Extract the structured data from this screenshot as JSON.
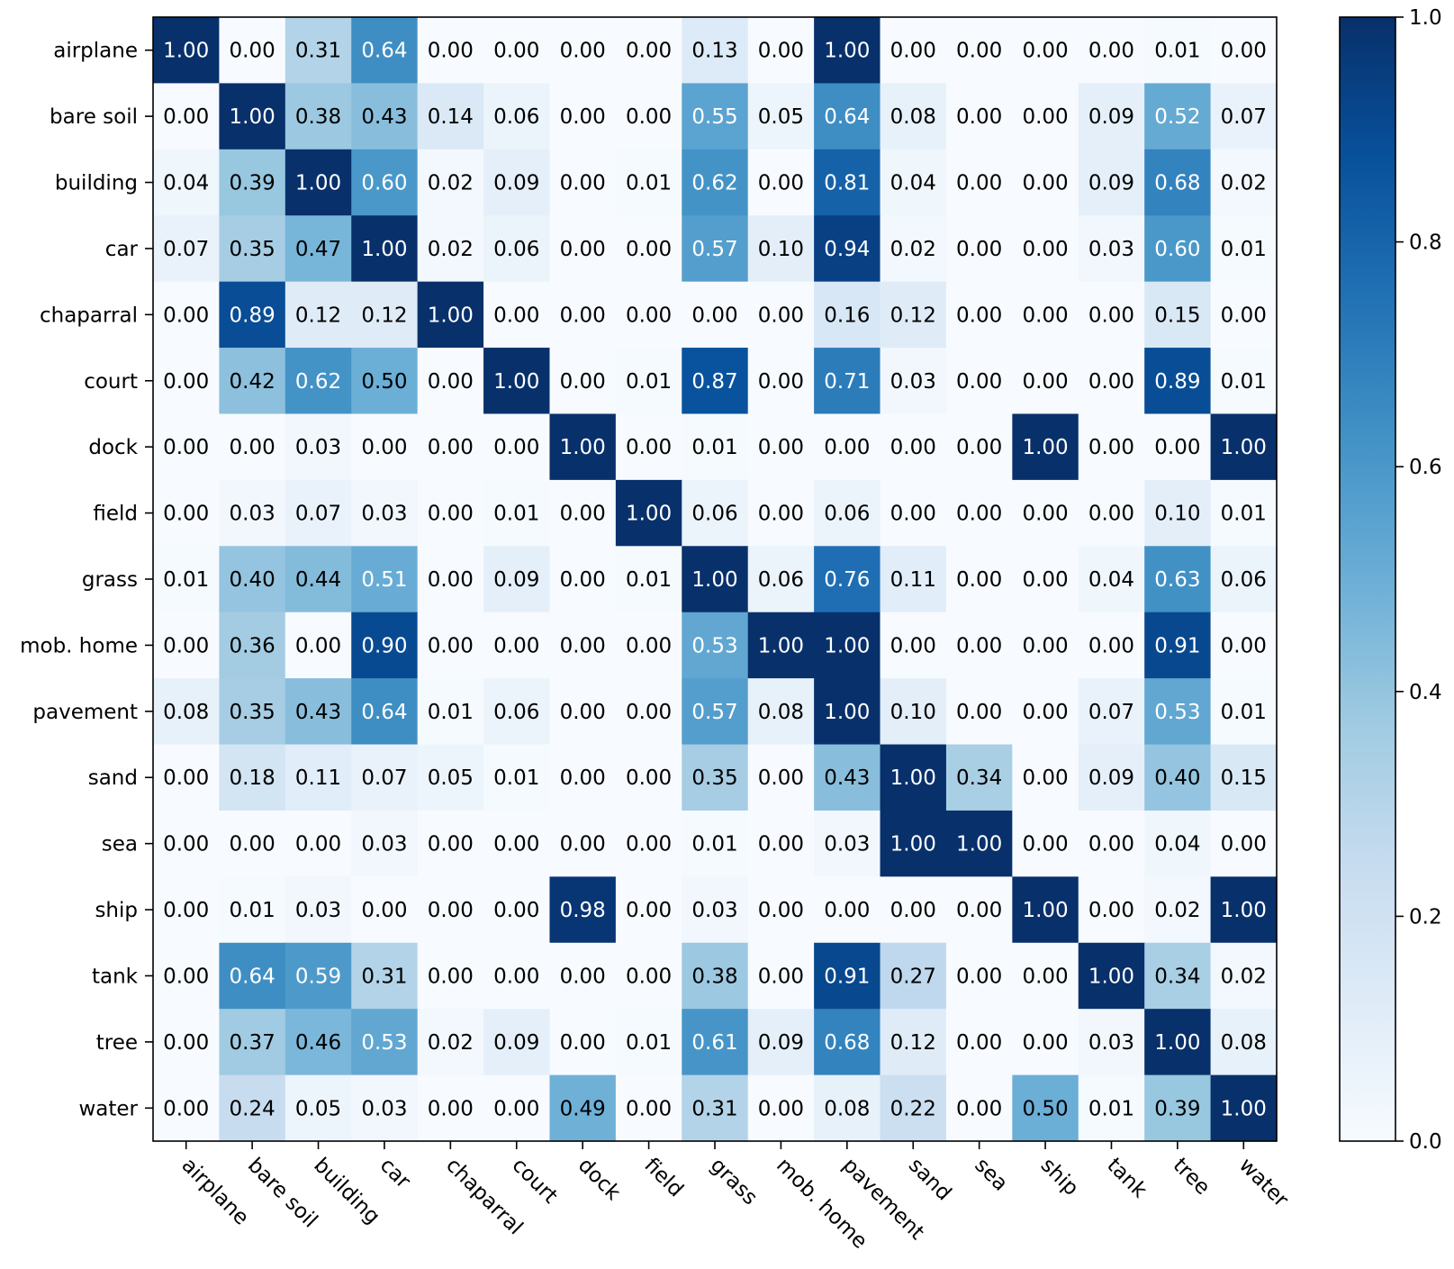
{
  "chart_data": {
    "type": "heatmap",
    "title": "",
    "xlabel": "",
    "ylabel": "",
    "rows": [
      "airplane",
      "bare soil",
      "building",
      "car",
      "chaparral",
      "court",
      "dock",
      "field",
      "grass",
      "mob. home",
      "pavement",
      "sand",
      "sea",
      "ship",
      "tank",
      "tree",
      "water"
    ],
    "columns": [
      "airplane",
      "bare soil",
      "building",
      "car",
      "chaparral",
      "court",
      "dock",
      "field",
      "grass",
      "mob. home",
      "pavement",
      "sand",
      "sea",
      "ship",
      "tank",
      "tree",
      "water"
    ],
    "values": [
      [
        1.0,
        0.0,
        0.31,
        0.64,
        0.0,
        0.0,
        0.0,
        0.0,
        0.13,
        0.0,
        1.0,
        0.0,
        0.0,
        0.0,
        0.0,
        0.01,
        0.0
      ],
      [
        0.0,
        1.0,
        0.38,
        0.43,
        0.14,
        0.06,
        0.0,
        0.0,
        0.55,
        0.05,
        0.64,
        0.08,
        0.0,
        0.0,
        0.09,
        0.52,
        0.07
      ],
      [
        0.04,
        0.39,
        1.0,
        0.6,
        0.02,
        0.09,
        0.0,
        0.01,
        0.62,
        0.0,
        0.81,
        0.04,
        0.0,
        0.0,
        0.09,
        0.68,
        0.02
      ],
      [
        0.07,
        0.35,
        0.47,
        1.0,
        0.02,
        0.06,
        0.0,
        0.0,
        0.57,
        0.1,
        0.94,
        0.02,
        0.0,
        0.0,
        0.03,
        0.6,
        0.01
      ],
      [
        0.0,
        0.89,
        0.12,
        0.12,
        1.0,
        0.0,
        0.0,
        0.0,
        0.0,
        0.0,
        0.16,
        0.12,
        0.0,
        0.0,
        0.0,
        0.15,
        0.0
      ],
      [
        0.0,
        0.42,
        0.62,
        0.5,
        0.0,
        1.0,
        0.0,
        0.01,
        0.87,
        0.0,
        0.71,
        0.03,
        0.0,
        0.0,
        0.0,
        0.89,
        0.01
      ],
      [
        0.0,
        0.0,
        0.03,
        0.0,
        0.0,
        0.0,
        1.0,
        0.0,
        0.01,
        0.0,
        0.0,
        0.0,
        0.0,
        1.0,
        0.0,
        0.0,
        1.0
      ],
      [
        0.0,
        0.03,
        0.07,
        0.03,
        0.0,
        0.01,
        0.0,
        1.0,
        0.06,
        0.0,
        0.06,
        0.0,
        0.0,
        0.0,
        0.0,
        0.1,
        0.01
      ],
      [
        0.01,
        0.4,
        0.44,
        0.51,
        0.0,
        0.09,
        0.0,
        0.01,
        1.0,
        0.06,
        0.76,
        0.11,
        0.0,
        0.0,
        0.04,
        0.63,
        0.06
      ],
      [
        0.0,
        0.36,
        0.0,
        0.9,
        0.0,
        0.0,
        0.0,
        0.0,
        0.53,
        1.0,
        1.0,
        0.0,
        0.0,
        0.0,
        0.0,
        0.91,
        0.0
      ],
      [
        0.08,
        0.35,
        0.43,
        0.64,
        0.01,
        0.06,
        0.0,
        0.0,
        0.57,
        0.08,
        1.0,
        0.1,
        0.0,
        0.0,
        0.07,
        0.53,
        0.01
      ],
      [
        0.0,
        0.18,
        0.11,
        0.07,
        0.05,
        0.01,
        0.0,
        0.0,
        0.35,
        0.0,
        0.43,
        1.0,
        0.34,
        0.0,
        0.09,
        0.4,
        0.15
      ],
      [
        0.0,
        0.0,
        0.0,
        0.03,
        0.0,
        0.0,
        0.0,
        0.0,
        0.01,
        0.0,
        0.03,
        1.0,
        1.0,
        0.0,
        0.0,
        0.04,
        0.0
      ],
      [
        0.0,
        0.01,
        0.03,
        0.0,
        0.0,
        0.0,
        0.98,
        0.0,
        0.03,
        0.0,
        0.0,
        0.0,
        0.0,
        1.0,
        0.0,
        0.02,
        1.0
      ],
      [
        0.0,
        0.64,
        0.59,
        0.31,
        0.0,
        0.0,
        0.0,
        0.0,
        0.38,
        0.0,
        0.91,
        0.27,
        0.0,
        0.0,
        1.0,
        0.34,
        0.02
      ],
      [
        0.0,
        0.37,
        0.46,
        0.53,
        0.02,
        0.09,
        0.0,
        0.01,
        0.61,
        0.09,
        0.68,
        0.12,
        0.0,
        0.0,
        0.03,
        1.0,
        0.08
      ],
      [
        0.0,
        0.24,
        0.05,
        0.03,
        0.0,
        0.0,
        0.49,
        0.0,
        0.31,
        0.0,
        0.08,
        0.22,
        0.0,
        0.5,
        0.01,
        0.39,
        1.0
      ]
    ],
    "value_format": "2 decimals",
    "colormap": "Blues",
    "colormap_stops": [
      "#f7fbff",
      "#deebf7",
      "#c6dbef",
      "#9ecae1",
      "#6baed6",
      "#4292c6",
      "#2171b5",
      "#08519c",
      "#08306b"
    ],
    "colorbar": {
      "range": [
        0.0,
        1.0
      ],
      "ticks": [
        0.0,
        0.2,
        0.4,
        0.6,
        0.8,
        1.0
      ],
      "tick_labels": [
        "0.0",
        "0.2",
        "0.4",
        "0.6",
        "0.8",
        "1.0"
      ]
    },
    "text_color_threshold": 0.5,
    "text_color_dark": "#000000",
    "text_color_light": "#ffffff"
  }
}
